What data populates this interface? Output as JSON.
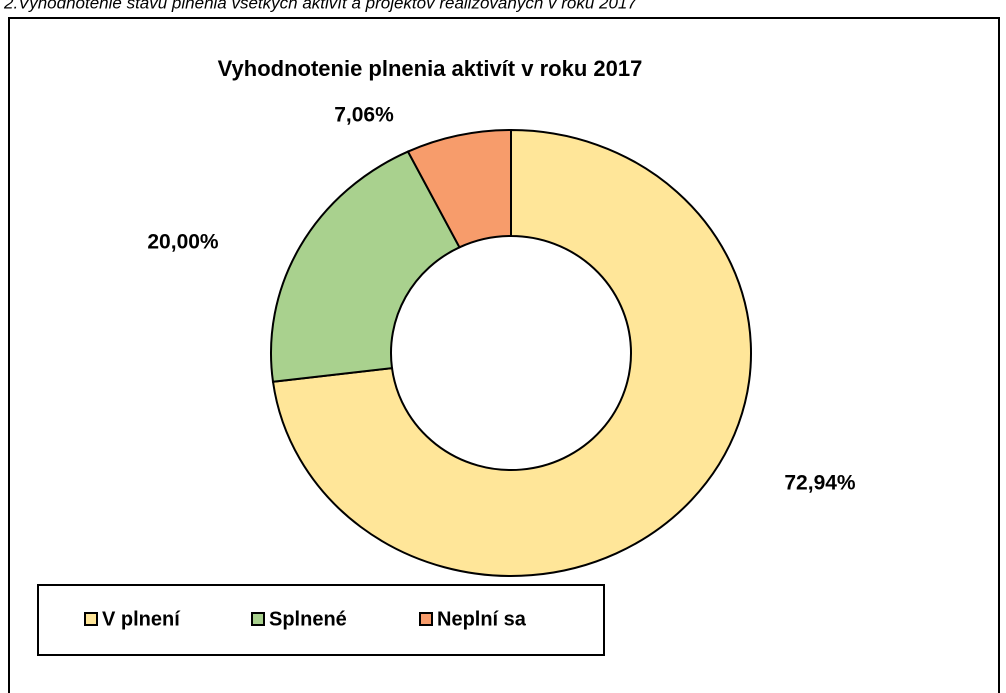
{
  "chart_data": {
    "type": "donut",
    "caption": "2.Vyhodnotenie stavu plnenia všetkých aktivít a projektov realizovaných v roku 2017",
    "title": "Vyhodnotenie plnenia aktivít  v roku 2017",
    "categories": [
      "V plnení",
      "Splnené",
      "Neplní sa"
    ],
    "values": [
      72.94,
      20.0,
      7.06
    ],
    "value_labels": [
      "72,94%",
      "20,00%",
      "7,06%"
    ],
    "colors": [
      "#ffe699",
      "#a9d18e",
      "#f79c6b"
    ],
    "legend": "bottom-left"
  }
}
